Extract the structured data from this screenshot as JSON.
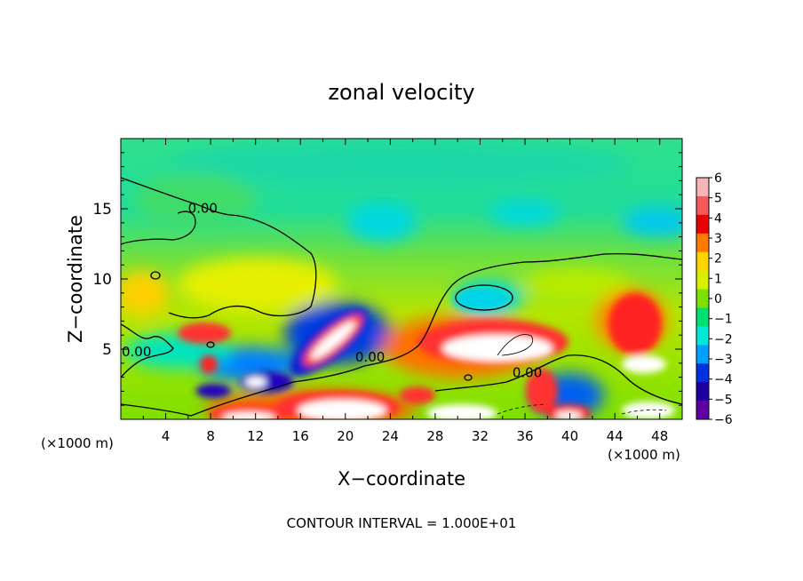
{
  "chart_data": {
    "type": "heatmap",
    "title": "zonal velocity",
    "xlabel": "X−coordinate",
    "ylabel": "Z−coordinate",
    "x_unit_left": "(×1000 m)",
    "x_unit_right": "(×1000 m)",
    "footer": "CONTOUR INTERVAL = 1.000E+01",
    "xlim": [
      0,
      50
    ],
    "ylim": [
      0,
      20
    ],
    "x_ticks": [
      4,
      8,
      12,
      16,
      20,
      24,
      28,
      32,
      36,
      40,
      44,
      48
    ],
    "y_ticks": [
      5,
      10,
      15
    ],
    "colorbar": {
      "min": -6,
      "max": 6,
      "labels": [
        "6",
        "5",
        "4",
        "3",
        "2",
        "1",
        "0",
        "−1",
        "−2",
        "−3",
        "−4",
        "−5",
        "−6"
      ],
      "colors": [
        "#f7b6b6",
        "#f45a5a",
        "#e60000",
        "#ff7a00",
        "#ffd400",
        "#d8f000",
        "#7ee000",
        "#00e070",
        "#00e8d8",
        "#00a0ff",
        "#0030e0",
        "#2000a0",
        "#6000a0"
      ]
    },
    "contour_labels": [
      {
        "text": "0.00",
        "x": 7.3,
        "y": 14.7
      },
      {
        "text": "0.00",
        "x": 1.4,
        "y": 4.5
      },
      {
        "text": "0.00",
        "x": 22.2,
        "y": 4.1
      },
      {
        "text": "0.00",
        "x": 36.2,
        "y": 3.0
      }
    ]
  }
}
